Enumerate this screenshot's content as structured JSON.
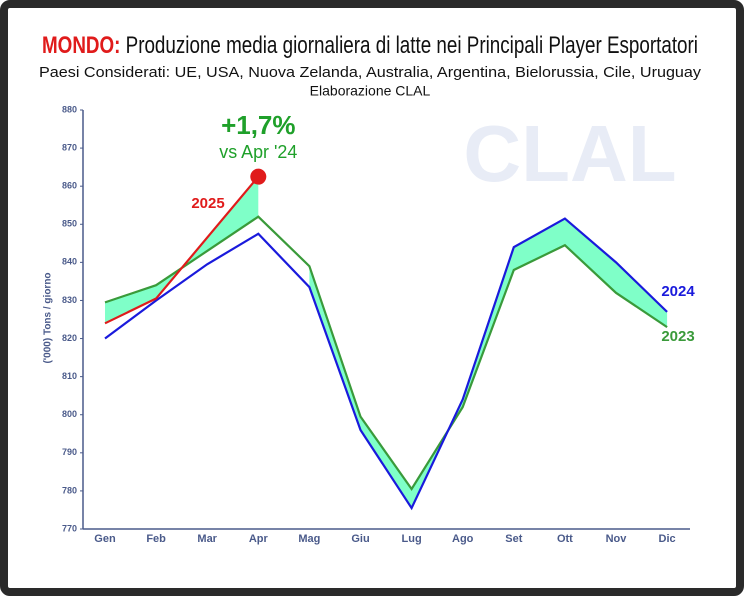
{
  "chart_data": {
    "type": "line",
    "title_parts": [
      "MONDO:",
      " Produzione media giornaliera di latte nei Principali Player Esportatori"
    ],
    "subtitle": [
      "Paesi Considerati: UE, USA, Nuova Zelanda, Australia, Argentina, Bielorussia, Cile, Uruguay",
      "Elaborazione CLAL"
    ],
    "watermark": "CLAL",
    "y_label": "('000) Tons / giorno",
    "annotation": [
      "+1,7%",
      "vs Apr '24"
    ],
    "categories": [
      "Gen",
      "Feb",
      "Mar",
      "Apr",
      "Mag",
      "Giu",
      "Lug",
      "Ago",
      "Set",
      "Ott",
      "Nov",
      "Dic"
    ],
    "series": [
      {
        "name": "2023",
        "color": "#3a9a3a",
        "values": [
          829.5,
          834,
          843,
          852,
          839,
          799.5,
          780.5,
          802,
          838,
          844.5,
          832,
          823
        ]
      },
      {
        "name": "2024",
        "color": "#1a1adc",
        "values": [
          820,
          830,
          839.5,
          847.5,
          833.5,
          796,
          775.5,
          804,
          844,
          851.5,
          840,
          827
        ]
      },
      {
        "name": "2025",
        "color": "#e01b1b",
        "values": [
          824,
          830.5,
          846.5,
          862.5,
          null,
          null,
          null,
          null,
          null,
          null,
          null,
          null
        ]
      }
    ],
    "fill_color": "#7fffc8",
    "ylim": [
      770,
      880
    ],
    "yticks": [
      770,
      780,
      790,
      800,
      810,
      820,
      830,
      840,
      850,
      860,
      870,
      880
    ]
  }
}
